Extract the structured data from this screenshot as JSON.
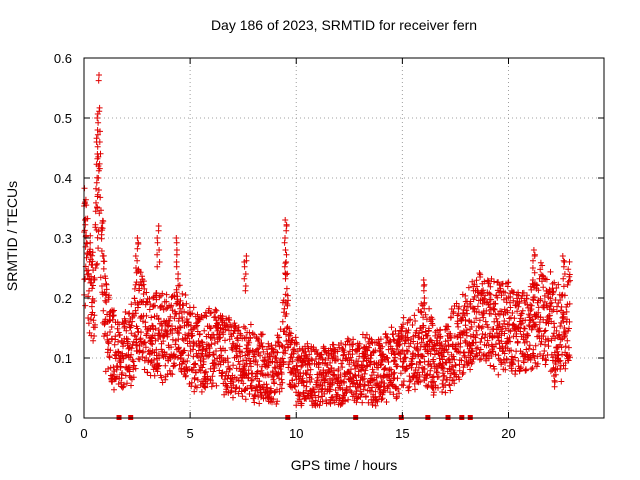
{
  "chart_data": {
    "type": "scatter",
    "title": "Day 186 of 2023, SRMTID for receiver fern",
    "xlabel": "GPS time / hours",
    "ylabel": "SRMTID / TECUs",
    "xlim": [
      0,
      24.5
    ],
    "ylim": [
      0,
      0.6
    ],
    "xticks": [
      0,
      5,
      10,
      15,
      20
    ],
    "yticks": [
      0,
      0.1,
      0.2,
      0.3,
      0.4,
      0.5,
      0.6
    ],
    "grid": true,
    "marker": "plus",
    "series": [
      {
        "name": "SRMTID",
        "color": "#e00000",
        "trend": {
          "x": [
            0.0,
            0.1,
            0.3,
            0.5,
            0.6,
            0.7,
            0.8,
            1.0,
            1.3,
            1.7,
            2.2,
            2.6,
            3.0,
            3.5,
            4.0,
            4.5,
            5.0,
            5.5,
            6.0,
            6.5,
            7.0,
            7.5,
            8.0,
            8.5,
            9.0,
            9.3,
            9.5,
            9.7,
            10.0,
            10.5,
            11.0,
            11.5,
            12.0,
            12.5,
            13.0,
            13.5,
            14.0,
            14.5,
            15.0,
            15.5,
            16.0,
            16.5,
            17.0,
            17.5,
            18.0,
            18.5,
            19.0,
            19.5,
            20.0,
            20.5,
            21.0,
            21.5,
            22.0,
            22.5,
            22.9
          ],
          "y": [
            0.3,
            0.27,
            0.22,
            0.2,
            0.38,
            0.45,
            0.3,
            0.16,
            0.12,
            0.11,
            0.12,
            0.18,
            0.14,
            0.14,
            0.13,
            0.15,
            0.12,
            0.11,
            0.12,
            0.11,
            0.1,
            0.09,
            0.09,
            0.08,
            0.07,
            0.09,
            0.2,
            0.09,
            0.07,
            0.07,
            0.06,
            0.07,
            0.07,
            0.08,
            0.08,
            0.08,
            0.08,
            0.09,
            0.1,
            0.11,
            0.13,
            0.1,
            0.1,
            0.12,
            0.14,
            0.17,
            0.17,
            0.15,
            0.16,
            0.14,
            0.15,
            0.18,
            0.16,
            0.14,
            0.18
          ]
        },
        "spikes": [
          {
            "x": 0.65,
            "y": [
              0.5,
              0.48,
              0.46,
              0.44,
              0.42,
              0.4,
              0.38
            ]
          },
          {
            "x": 0.05,
            "y": [
              0.34,
              0.33,
              0.31
            ]
          },
          {
            "x": 3.5,
            "y": [
              0.32,
              0.3,
              0.28,
              0.26
            ]
          },
          {
            "x": 2.5,
            "y": [
              0.3,
              0.29,
              0.27,
              0.25
            ]
          },
          {
            "x": 4.4,
            "y": [
              0.3,
              0.28,
              0.26,
              0.24
            ]
          },
          {
            "x": 9.5,
            "y": [
              0.33,
              0.32,
              0.3,
              0.28,
              0.26,
              0.24
            ]
          },
          {
            "x": 7.6,
            "y": [
              0.27,
              0.26,
              0.24,
              0.22
            ]
          },
          {
            "x": 16.0,
            "y": [
              0.23,
              0.22,
              0.2,
              0.19
            ]
          },
          {
            "x": 21.2,
            "y": [
              0.28,
              0.27,
              0.25,
              0.23
            ]
          },
          {
            "x": 22.6,
            "y": [
              0.27,
              0.26,
              0.24
            ]
          },
          {
            "x": 22.2,
            "y": [
              0.08,
              0.07,
              0.06
            ]
          }
        ],
        "zero_points_x": [
          1.65,
          2.2,
          9.6,
          12.8,
          14.95,
          16.2,
          17.15,
          17.8,
          18.2
        ]
      }
    ]
  }
}
